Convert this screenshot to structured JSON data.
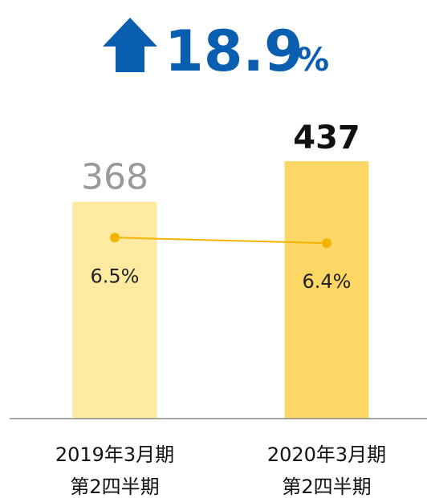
{
  "chart_data": {
    "type": "bar_line",
    "headline_value": "18.9",
    "headline_unit": "%",
    "categories": [
      [
        "2019年3月期",
        "第2四半期"
      ],
      [
        "2020年3月期",
        "第2四半期"
      ]
    ],
    "series": [
      {
        "type": "bar",
        "colors": [
          "#fde9a0",
          "#fdd766"
        ],
        "values": [
          368,
          437
        ]
      },
      {
        "type": "line",
        "axis": "y2",
        "color": "#f3b300",
        "values": [
          6.5,
          6.4
        ],
        "value_labels": [
          "6.5%",
          "6.4%"
        ]
      }
    ],
    "ylim": [
      0,
      520
    ],
    "y2lim": [
      3.25,
      8.75
    ]
  }
}
